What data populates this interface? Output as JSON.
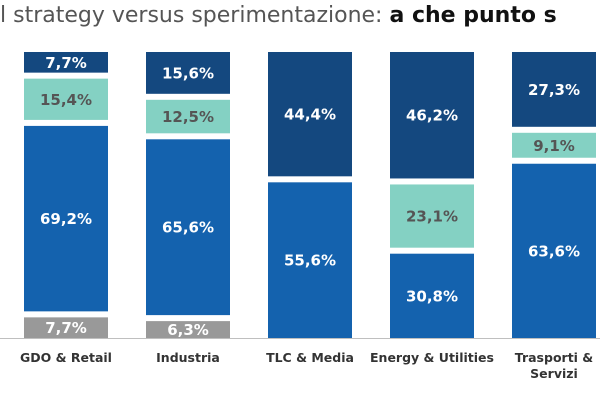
{
  "title": {
    "part1": "l strategy versus sperimentazione: ",
    "part2": "a che punto s"
  },
  "colors": {
    "dark_blue": "#14487f",
    "teal": "#84d1c3",
    "mid_blue": "#1462ae",
    "gray": "#999999",
    "baseline": "#bfbfbf"
  },
  "chart_data": {
    "type": "bar",
    "stacked": true,
    "orientation": "vertical",
    "normalized_to_100": true,
    "legend": "none",
    "grid": false,
    "categories": [
      "GDO & Retail",
      "Industria",
      "TLC & Media",
      "Energy & Utilities",
      "Trasporti & Servizi"
    ],
    "category_label_lines": [
      [
        "GDO & Retail"
      ],
      [
        "Industria"
      ],
      [
        "TLC & Media"
      ],
      [
        "Energy & Utilities"
      ],
      [
        "Trasporti &",
        "Servizi"
      ]
    ],
    "series": [
      {
        "color": "#999999",
        "values": [
          7.7,
          6.3,
          0,
          0,
          0
        ],
        "labels": [
          "7,7%",
          "6,3%",
          "",
          "",
          ""
        ],
        "label_color": "#ffffff"
      },
      {
        "color": "#1462ae",
        "values": [
          69.2,
          65.6,
          55.6,
          30.8,
          63.6
        ],
        "labels": [
          "69,2%",
          "65,6%",
          "55,6%",
          "30,8%",
          "63,6%"
        ],
        "label_color": "#ffffff"
      },
      {
        "color": "#84d1c3",
        "values": [
          15.4,
          12.5,
          0,
          23.1,
          9.1
        ],
        "labels": [
          "15,4%",
          "12,5%",
          "",
          "23,1%",
          "9,1%"
        ],
        "label_color": "#555555"
      },
      {
        "color": "#14487f",
        "values": [
          7.7,
          15.6,
          44.4,
          46.2,
          27.3
        ],
        "labels": [
          "7,7%",
          "15,6%",
          "44,4%",
          "46,2%",
          "27,3%"
        ],
        "label_color": "#ffffff"
      }
    ]
  }
}
